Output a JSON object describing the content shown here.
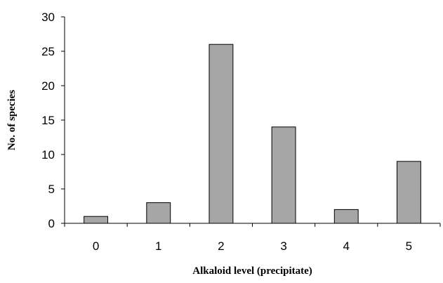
{
  "chart_data": {
    "type": "bar",
    "title": "",
    "xlabel": "Alkaloid level (precipitate)",
    "ylabel": "No. of species",
    "categories": [
      "0",
      "1",
      "2",
      "3",
      "4",
      "5"
    ],
    "values": [
      1,
      3,
      26,
      14,
      2,
      9
    ],
    "ylim": [
      0,
      30
    ],
    "yticks": [
      "0",
      "5",
      "10",
      "15",
      "20",
      "25",
      "30"
    ],
    "grid": false,
    "legend": "none",
    "bar_color": "#a6a6a6",
    "bar_edge_color": "#000000"
  }
}
